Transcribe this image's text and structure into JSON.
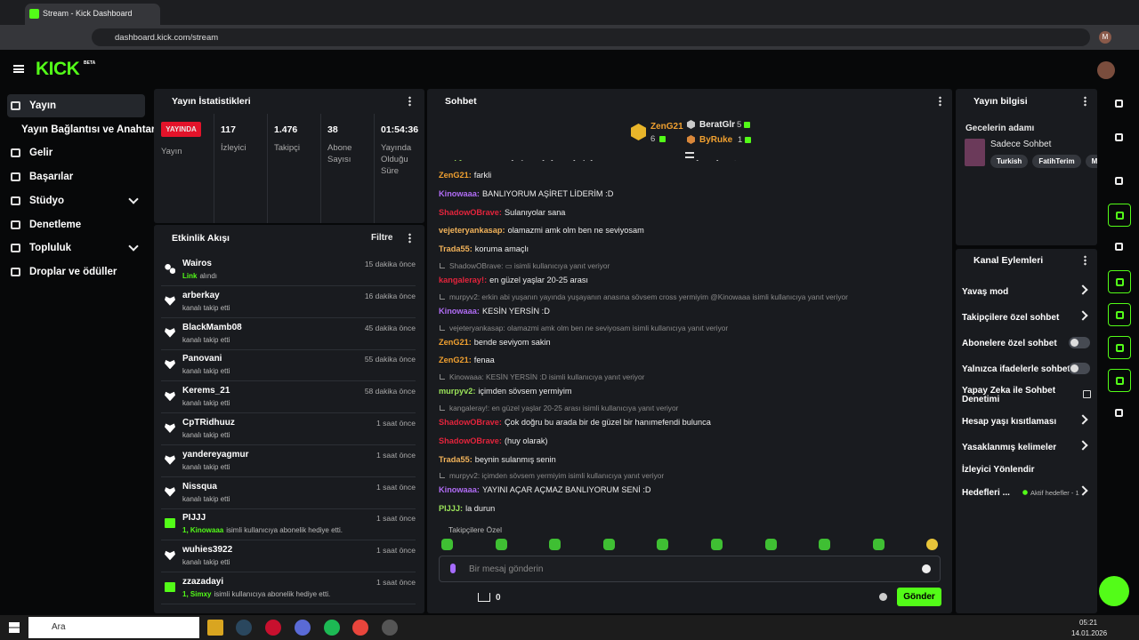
{
  "browser": {
    "tab_title": "Stream - Kick Dashboard",
    "url": "dashboard.kick.com/stream",
    "profile_initial": "M"
  },
  "header": {
    "logo": "KICK",
    "logo_badge": "BETA"
  },
  "sidebar": {
    "items": [
      "Yayın",
      "Yayın Bağlantısı ve Anahtarı",
      "Gelir",
      "Başarılar",
      "Stüdyo",
      "Denetleme",
      "Topluluk",
      "Droplar ve ödüller"
    ]
  },
  "stats": {
    "title": "Yayın İstatistikleri",
    "status": "YAYINDA",
    "status_label": "Yayın",
    "items": [
      {
        "value": "117",
        "label": "İzleyici"
      },
      {
        "value": "1.476",
        "label": "Takipçi"
      },
      {
        "value": "38",
        "label": "Abone Sayısı"
      },
      {
        "value": "01:54:36",
        "label": "Yayında Olduğu Süre"
      }
    ]
  },
  "activity": {
    "title": "Etkinlik Akışı",
    "filter": "Filtre",
    "items": [
      {
        "name": "Wairos",
        "highlight": "Link",
        "text": "alındı",
        "time": "15 dakika önce"
      },
      {
        "name": "arberkay",
        "text": "kanalı takip etti",
        "time": "16 dakika önce"
      },
      {
        "name": "BlackMamb08",
        "text": "kanalı takip etti",
        "time": "45 dakika önce"
      },
      {
        "name": "Panovani",
        "text": "kanalı takip etti",
        "time": "55 dakika önce"
      },
      {
        "name": "Kerems_21",
        "text": "kanalı takip etti",
        "time": "58 dakika önce"
      },
      {
        "name": "CpTRidhuuz",
        "text": "kanalı takip etti",
        "time": "1 saat önce"
      },
      {
        "name": "yandereyagmur",
        "text": "kanalı takip etti",
        "time": "1 saat önce"
      },
      {
        "name": "Nissqua",
        "text": "kanalı takip etti",
        "time": "1 saat önce"
      },
      {
        "name": "PIJJJ",
        "highlight": "1, Kinowaaa",
        "text": "isimli kullanıcıya abonelik hediye etti.",
        "time": "1 saat önce"
      },
      {
        "name": "wuhies3922",
        "text": "kanalı takip etti",
        "time": "1 saat önce"
      },
      {
        "name": "zzazadayi",
        "highlight": "1, Simxy",
        "text": "isimli kullanıcıya abonelik hediye etti.",
        "time": "1 saat önce"
      }
    ]
  },
  "chat": {
    "title": "Sohbet",
    "leaders": [
      {
        "name": "ZenG21",
        "count": "6"
      },
      {
        "name": "BeratGlr",
        "count": "5"
      },
      {
        "name": "ByRuke",
        "count": "1"
      }
    ],
    "messages": [
      {
        "user": "murpyv2",
        "color": "#9be35a",
        "text": "erkin abi yuşanın yayında yuşayanın anasına sövsem cross yermiyim @Kinowaaa"
      },
      {
        "user": "ZenG21",
        "color": "#f0a030",
        "text": "farkli"
      },
      {
        "user": "Kinowaaa",
        "color": "#b06cf5",
        "text": "BANLIYORUM AŞİRET LİDERİM :D"
      },
      {
        "user": "ShadowOBrave",
        "color": "#e3243c",
        "text": "Sulanıyolar sana"
      },
      {
        "user": "vejeteryankasap",
        "color": "#f2b35a",
        "text": "olamazmi amk olm ben ne seviyosam"
      },
      {
        "user": "Trada55",
        "color": "#f2b35a",
        "text": "koruma amaçlı"
      },
      {
        "reply": "ShadowOBrave: ▭ isimli kullanıcıya yanıt veriyor",
        "user": "kangaleray!",
        "color": "#e3243c",
        "text": "en güzel yaşlar 20-25 arası"
      },
      {
        "reply": "murpyv2: erkin abi yuşanın yayında yuşayanın anasına sövsem cross yermiyim @Kinowaaa isimli kullanıcıya yanıt veriyor",
        "user": "Kinowaaa",
        "color": "#b06cf5",
        "text": "KESİN YERSİN :D"
      },
      {
        "reply": "vejeteryankasap: olamazmi amk olm ben ne seviyosam isimli kullanıcıya yanıt veriyor",
        "user": "ZenG21",
        "color": "#f0a030",
        "text": "bende seviyom sakin"
      },
      {
        "user": "ZenG21",
        "color": "#f0a030",
        "text": "fenaa"
      },
      {
        "reply": "Kinowaaa: KESİN YERSİN :D isimli kullanıcıya yanıt veriyor",
        "user": "murpyv2",
        "color": "#9be35a",
        "text": "içimden sövsem yermiyim"
      },
      {
        "reply": "kangaleray!: en güzel yaşlar 20-25 arası isimli kullanıcıya yanıt veriyor",
        "user": "ShadowOBrave",
        "color": "#e3243c",
        "text": "Çok doğru bu arada bir de güzel bir hanımefendi bulunca"
      },
      {
        "user": "ShadowOBrave",
        "color": "#e3243c",
        "text": "(huy olarak)"
      },
      {
        "user": "Trada55",
        "color": "#f2b35a",
        "text": "beynin sulanmış senin"
      },
      {
        "reply": "murpyv2: içimden sövsem yermiyim isimli kullanıcıya yanıt veriyor",
        "user": "Kinowaaa",
        "color": "#b06cf5",
        "text": "YAYINI AÇAR AÇMAZ BANLIYORUM SENİ :D"
      },
      {
        "user": "PIJJJ",
        "color": "#9be35a",
        "text": "la durun"
      }
    ],
    "followers_only": "Takipçilere Özel",
    "placeholder": "Bir mesaj gönderin",
    "points": "0",
    "send": "Gönder"
  },
  "info": {
    "title": "Yayın bilgisi",
    "stream_title": "Gecelerin adamı",
    "category": "Sadece Sohbet",
    "tags": [
      "Turkish",
      "FatihTerim",
      "M"
    ]
  },
  "actions": {
    "title": "Kanal Eylemleri",
    "items": [
      {
        "label": "Yavaş mod",
        "control": "arrow"
      },
      {
        "label": "Takipçilere özel sohbet",
        "control": "arrow"
      },
      {
        "label": "Abonelere özel sohbet",
        "control": "toggle"
      },
      {
        "label": "Yalnızca ifadelerle sohbet",
        "control": "toggle"
      },
      {
        "label": "Yapay Zeka ile Sohbet Denetimi",
        "control": "external"
      },
      {
        "label": "Hesap yaşı kısıtlaması",
        "control": "arrow"
      },
      {
        "label": "Yasaklanmış kelimeler",
        "control": "arrow"
      },
      {
        "label": "İzleyici Yönlendir"
      },
      {
        "label": "Hedefleri ...",
        "detail": "Aktif hedefler - 1",
        "control": "arrow"
      }
    ]
  },
  "taskbar": {
    "search": "Ara",
    "time": "05:21",
    "date": "14.01.2026"
  }
}
